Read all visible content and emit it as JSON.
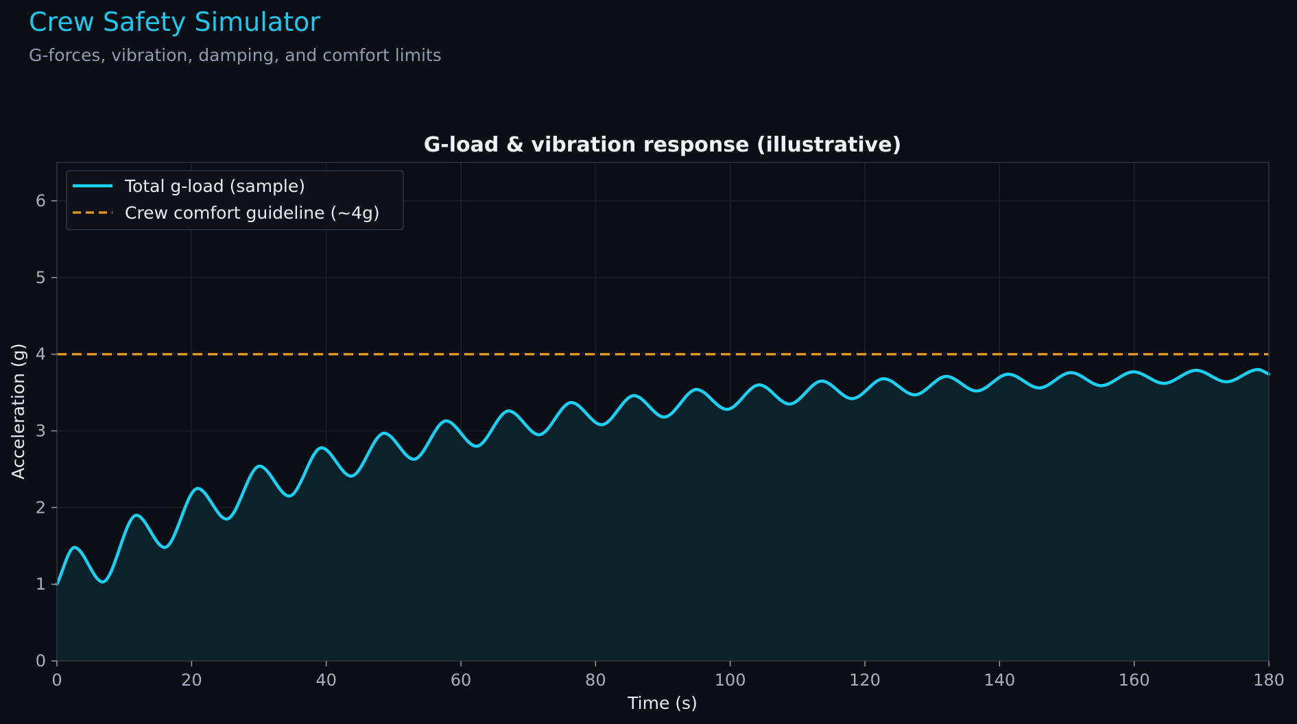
{
  "header": {
    "title": "Crew Safety Simulator",
    "subtitle": "G-forces, vibration, damping, and comfort limits"
  },
  "colors": {
    "background": "#0b0e14",
    "accent": "#1ec8ee",
    "series_line": "#1ad0f5",
    "guideline": "#e0951c",
    "fill": "#0b222b"
  },
  "chart_data": {
    "type": "line",
    "title": "G-load & vibration response (illustrative)",
    "xlabel": "Time (s)",
    "ylabel": "Acceleration (g)",
    "xlim": [
      0,
      180
    ],
    "ylim": [
      0,
      6.5
    ],
    "xticks": [
      "0",
      "20",
      "40",
      "60",
      "80",
      "100",
      "120",
      "140",
      "160",
      "180"
    ],
    "yticks": [
      "0",
      "1",
      "2",
      "3",
      "4",
      "5",
      "6"
    ],
    "grid": true,
    "legend_position": "top-left",
    "series": [
      {
        "name": "Total g-load (sample)",
        "style": "solid",
        "fill_below": true,
        "x": [
          0,
          2.6,
          6.8,
          11.8,
          16,
          20.9,
          25.2,
          30.1,
          34.5,
          39.3,
          43.7,
          48.6,
          53,
          57.8,
          62.3,
          67.1,
          71.6,
          76.4,
          80.9,
          85.7,
          90.2,
          95,
          99.5,
          104.3,
          108.8,
          113.6,
          118.1,
          122.8,
          127.4,
          132.1,
          136.6,
          141.3,
          145.9,
          150.6,
          155.1,
          159.9,
          164.4,
          169.2,
          173.7,
          178.4,
          180
        ],
        "y": [
          1.0,
          1.48,
          1.03,
          1.9,
          1.48,
          2.25,
          1.85,
          2.54,
          2.15,
          2.78,
          2.41,
          2.97,
          2.63,
          3.13,
          2.8,
          3.26,
          2.95,
          3.37,
          3.08,
          3.46,
          3.18,
          3.54,
          3.28,
          3.6,
          3.35,
          3.65,
          3.42,
          3.68,
          3.47,
          3.71,
          3.52,
          3.74,
          3.56,
          3.76,
          3.59,
          3.77,
          3.62,
          3.79,
          3.64,
          3.8,
          3.74
        ]
      },
      {
        "name": "Crew comfort guideline (~4g)",
        "style": "dashed",
        "x": [
          0,
          180
        ],
        "y": [
          4,
          4
        ]
      }
    ]
  }
}
